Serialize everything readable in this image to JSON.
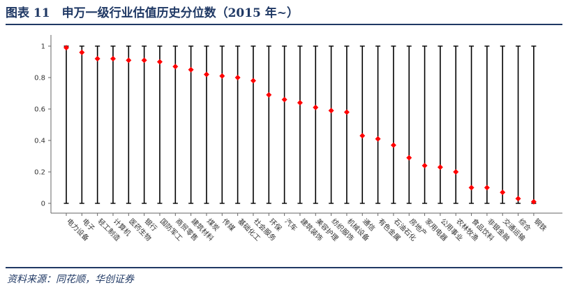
{
  "header": {
    "title": "图表 11　申万一级行业估值历史分位数（2015 年~）"
  },
  "footer": {
    "source": "资料来源：同花顺，华创证券"
  },
  "colors": {
    "marker": "#ff0000",
    "line": "#000000",
    "title": "#1f3864",
    "axis": "#666666"
  },
  "chart_data": {
    "type": "scatter",
    "ylim": [
      0,
      1
    ],
    "yticks": [
      0,
      0.2,
      0.4,
      0.6,
      0.8,
      1
    ],
    "ytick_labels": [
      "0",
      "0.2",
      "0.4",
      "0.6",
      "0.8",
      "1"
    ],
    "grid": false,
    "legend": "none",
    "range_lines": {
      "low": 0,
      "high": 1
    },
    "categories": [
      "电力设备",
      "电子",
      "轻工制造",
      "计算机",
      "医药生物",
      "银行",
      "国防军工",
      "商贸零售",
      "建筑材料",
      "煤炭",
      "传媒",
      "基础化工",
      "社会服务",
      "环保",
      "汽车",
      "建筑装饰",
      "美容护理",
      "纺织服饰",
      "机械设备",
      "通信",
      "有色金属",
      "石油石化",
      "房地产",
      "家用电器",
      "公用事业",
      "农林牧渔",
      "食品饮料",
      "非银金融",
      "交通运输",
      "综合",
      "钢铁"
    ],
    "values": [
      0.99,
      0.96,
      0.92,
      0.92,
      0.91,
      0.91,
      0.9,
      0.87,
      0.85,
      0.82,
      0.81,
      0.8,
      0.78,
      0.69,
      0.66,
      0.64,
      0.61,
      0.59,
      0.58,
      0.43,
      0.41,
      0.37,
      0.29,
      0.24,
      0.23,
      0.2,
      0.1,
      0.1,
      0.07,
      0.03,
      0.01
    ]
  }
}
